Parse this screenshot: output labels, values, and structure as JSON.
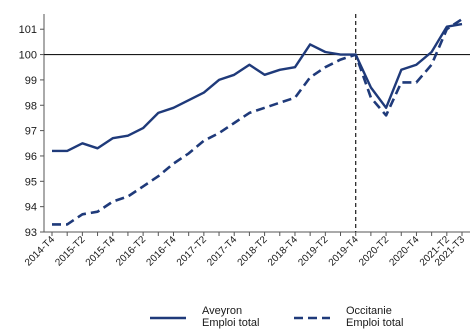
{
  "chart_data": {
    "type": "line",
    "categories": [
      "2014-T4",
      "2015-T1",
      "2015-T2",
      "2015-T3",
      "2015-T4",
      "2016-T1",
      "2016-T2",
      "2016-T3",
      "2016-T4",
      "2017-T1",
      "2017-T2",
      "2017-T3",
      "2017-T4",
      "2018-T1",
      "2018-T2",
      "2018-T3",
      "2018-T4",
      "2019-T1",
      "2019-T2",
      "2019-T3",
      "2019-T4",
      "2020-T1",
      "2020-T2",
      "2020-T3",
      "2020-T4",
      "2021-T1",
      "2021-T2",
      "2021-T3"
    ],
    "x_tick_labels": [
      "2014-T4",
      "2015-T2",
      "2015-T4",
      "2016-T2",
      "2016-T4",
      "2017-T2",
      "2017-T4",
      "2018-T2",
      "2018-T4",
      "2019-T2",
      "2019-T4",
      "2020-T2",
      "2020-T4",
      "2021-T2",
      "2021-T3"
    ],
    "series": [
      {
        "name": "Aveyron\nEmploi total",
        "style": "solid",
        "values": [
          96.2,
          96.2,
          96.5,
          96.3,
          96.7,
          96.8,
          97.1,
          97.7,
          97.9,
          98.2,
          98.5,
          99.0,
          99.2,
          99.6,
          99.2,
          99.4,
          99.5,
          100.4,
          100.1,
          100.0,
          100.0,
          98.7,
          97.9,
          99.4,
          99.6,
          100.1,
          101.1,
          101.2
        ]
      },
      {
        "name": "Occitanie\nEmploi total",
        "style": "dashed",
        "values": [
          93.3,
          93.3,
          93.7,
          93.8,
          94.2,
          94.4,
          94.8,
          95.2,
          95.7,
          96.1,
          96.6,
          96.9,
          97.3,
          97.7,
          97.9,
          98.1,
          98.3,
          99.1,
          99.5,
          99.8,
          100.0,
          98.3,
          97.6,
          98.9,
          98.9,
          99.6,
          101.0,
          101.4
        ]
      }
    ],
    "y_ticks": [
      93,
      94,
      95,
      96,
      97,
      98,
      99,
      100,
      101
    ],
    "ylim": [
      93,
      101.6
    ],
    "reference_line": 100,
    "marker_category": "2019-T4",
    "title": "",
    "xlabel": "",
    "ylabel": "",
    "legend_position": "bottom",
    "colors": {
      "line": "#1f3a7a",
      "axis": "#555555",
      "reference": "#1a1a1a"
    }
  }
}
